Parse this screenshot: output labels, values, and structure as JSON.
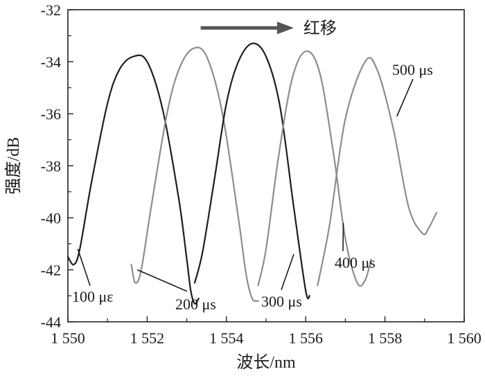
{
  "chart_data": {
    "type": "line",
    "title": "",
    "xlabel": "波长/nm",
    "ylabel": "强度/dB",
    "xlim": [
      1550,
      1560
    ],
    "ylim": [
      -44,
      -32
    ],
    "x_ticks": [
      {
        "value": 1550,
        "label": "1 550"
      },
      {
        "value": 1552,
        "label": "1 552"
      },
      {
        "value": 1554,
        "label": "1 554"
      },
      {
        "value": 1556,
        "label": "1 556"
      },
      {
        "value": 1558,
        "label": "1 558"
      },
      {
        "value": 1560,
        "label": "1 560"
      }
    ],
    "y_ticks": [
      {
        "value": -32,
        "label": "-32"
      },
      {
        "value": -34,
        "label": "-34"
      },
      {
        "value": -36,
        "label": "-36"
      },
      {
        "value": -38,
        "label": "-38"
      },
      {
        "value": -40,
        "label": "-40"
      },
      {
        "value": -42,
        "label": "-42"
      },
      {
        "value": -44,
        "label": "-44"
      }
    ],
    "grid": false,
    "legend": "none",
    "series": [
      {
        "name": "100 με",
        "color": "#1c1c1c",
        "x": [
          1550.0,
          1550.15,
          1550.3,
          1550.6,
          1551.0,
          1551.3,
          1551.65,
          1552.0,
          1552.4,
          1552.8,
          1553.0,
          1553.1,
          1553.2,
          1553.3
        ],
        "y": [
          -41.5,
          -41.8,
          -41.2,
          -38.6,
          -35.6,
          -34.3,
          -33.8,
          -34.0,
          -35.9,
          -39.3,
          -41.6,
          -42.8,
          -43.3,
          -43.1
        ]
      },
      {
        "name": "200 μs",
        "color": "#8c8c8c",
        "x": [
          1551.6,
          1551.7,
          1551.85,
          1552.1,
          1552.5,
          1552.8,
          1553.15,
          1553.5,
          1553.9,
          1554.3,
          1554.5,
          1554.65,
          1554.8
        ],
        "y": [
          -41.8,
          -42.5,
          -42.0,
          -39.6,
          -36.0,
          -34.3,
          -33.5,
          -33.8,
          -36.0,
          -40.0,
          -42.2,
          -43.1,
          -43.2
        ]
      },
      {
        "name": "300 μs",
        "color": "#1c1c1c",
        "x": [
          1553.2,
          1553.4,
          1553.7,
          1554.0,
          1554.3,
          1554.65,
          1555.0,
          1555.35,
          1555.7,
          1556.0,
          1556.1
        ],
        "y": [
          -42.5,
          -41.3,
          -38.5,
          -35.6,
          -34.0,
          -33.3,
          -33.8,
          -35.7,
          -39.6,
          -42.8,
          -43.0
        ]
      },
      {
        "name": "400 μs",
        "color": "#8c8c8c",
        "x": [
          1554.8,
          1555.0,
          1555.3,
          1555.65,
          1556.0,
          1556.35,
          1556.7,
          1557.0,
          1557.3,
          1557.5,
          1557.65
        ],
        "y": [
          -42.6,
          -41.2,
          -37.8,
          -34.7,
          -33.6,
          -34.4,
          -37.5,
          -40.8,
          -42.5,
          -42.4,
          -41.6
        ]
      },
      {
        "name": "500 μs",
        "color": "#8c8c8c",
        "x": [
          1556.3,
          1556.6,
          1557.0,
          1557.5,
          1557.8,
          1558.2,
          1558.6,
          1558.95,
          1559.1,
          1559.3
        ],
        "y": [
          -42.6,
          -40.3,
          -36.2,
          -34.0,
          -34.3,
          -36.5,
          -39.6,
          -40.6,
          -40.4,
          -39.8
        ]
      }
    ],
    "annotations": [
      {
        "text": "100 με",
        "target_series": 0,
        "target_x": 1550.25,
        "target_y": -41.2
      },
      {
        "text": "200 μs",
        "target_series": 1,
        "target_x": 1551.75,
        "target_y": -42.0
      },
      {
        "text": "300 μs",
        "target_series": 2,
        "target_x": 1555.7,
        "target_y": -41.4
      },
      {
        "text": "400 μs",
        "target_series": 3,
        "target_x": 1556.95,
        "target_y": -40.2
      },
      {
        "text": "500 μs",
        "target_series": 4,
        "target_x": 1558.3,
        "target_y": -36.1
      }
    ],
    "shift_arrow": {
      "label": "红移",
      "direction": "right",
      "x_from": 1553.35,
      "x_to": 1555.7,
      "y": -32.7
    }
  }
}
